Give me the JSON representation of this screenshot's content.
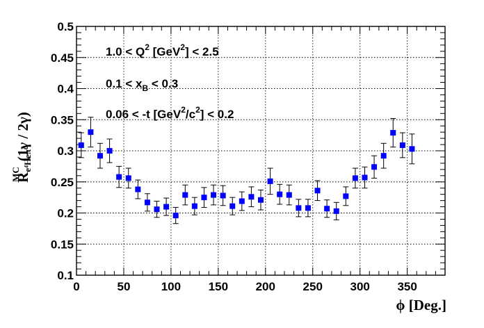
{
  "chart_data": {
    "type": "scatter",
    "ylabel": {
      "main": "R",
      "sub": "e⁴Heπ⁰",
      "sup": "MC",
      "tail": "(1γ / 2γ)"
    },
    "xlabel": "ϕ  [Deg.]",
    "xlim": [
      0,
      390
    ],
    "ylim": [
      0.1,
      0.5
    ],
    "xticks": [
      0,
      50,
      100,
      150,
      200,
      250,
      300,
      350
    ],
    "yticks": [
      0.1,
      0.15,
      0.2,
      0.25,
      0.3,
      0.35,
      0.4,
      0.45,
      0.5
    ],
    "xtick_labels": [
      "0",
      "50",
      "100",
      "150",
      "200",
      "250",
      "300",
      "350"
    ],
    "ytick_labels": [
      "0.1",
      "0.15",
      "0.2",
      "0.25",
      "0.3",
      "0.35",
      "0.4",
      "0.45",
      "0.5"
    ],
    "grid": true,
    "marker_color": "#0000ff",
    "annotations": [
      [
        "1.0 < Q",
        "2",
        " [GeV",
        "2",
        "] < 2.5"
      ],
      [
        "0.1 < x",
        "B",
        " < 0.3"
      ],
      [
        "0.06 < -t [GeV",
        "2",
        "/c",
        "2",
        "] < 0.2"
      ]
    ],
    "series": [
      {
        "x": [
          5,
          15,
          25,
          35,
          45,
          55,
          65,
          75,
          85,
          95,
          105,
          115,
          125,
          135,
          145,
          155,
          165,
          175,
          185,
          195,
          205,
          215,
          225,
          235,
          245,
          255,
          265,
          275,
          285,
          295,
          305,
          315,
          325,
          335,
          345,
          355
        ],
        "y": [
          0.309,
          0.33,
          0.292,
          0.3,
          0.258,
          0.256,
          0.238,
          0.217,
          0.206,
          0.21,
          0.196,
          0.229,
          0.211,
          0.225,
          0.229,
          0.228,
          0.211,
          0.219,
          0.226,
          0.221,
          0.251,
          0.23,
          0.229,
          0.208,
          0.208,
          0.236,
          0.207,
          0.203,
          0.227,
          0.256,
          0.257,
          0.274,
          0.292,
          0.329,
          0.309,
          0.303
        ],
        "yerr": [
          0.02,
          0.024,
          0.02,
          0.019,
          0.017,
          0.016,
          0.015,
          0.014,
          0.013,
          0.014,
          0.013,
          0.016,
          0.014,
          0.016,
          0.016,
          0.016,
          0.014,
          0.015,
          0.016,
          0.016,
          0.021,
          0.016,
          0.016,
          0.014,
          0.014,
          0.016,
          0.014,
          0.014,
          0.015,
          0.016,
          0.017,
          0.018,
          0.02,
          0.023,
          0.02,
          0.024
        ]
      }
    ]
  }
}
